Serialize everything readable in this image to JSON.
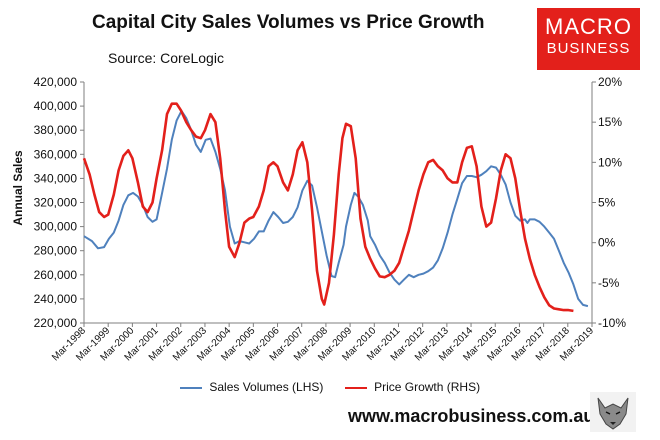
{
  "title": "Capital City Sales Volumes vs Price Growth",
  "source": "Source: CoreLogic",
  "logo": {
    "line1": "MACRO",
    "line2": "BUSINESS"
  },
  "website": "www.macrobusiness.com.au",
  "colors": {
    "sales": "#4f81bd",
    "price": "#e3201b",
    "logo_bg": "#e3201b"
  },
  "chart_data": {
    "type": "line",
    "title": "Capital City Sales Volumes vs Price Growth",
    "ylabel": "Annual Sales",
    "y2label": "",
    "grid": false,
    "legend_position": "bottom",
    "x_range": [
      1998.17,
      2019.17
    ],
    "x_ticks": [
      {
        "x": 1998.17,
        "label": "Mar-1998"
      },
      {
        "x": 1999.17,
        "label": "Mar-1999"
      },
      {
        "x": 2000.17,
        "label": "Mar-2000"
      },
      {
        "x": 2001.17,
        "label": "Mar-2001"
      },
      {
        "x": 2002.17,
        "label": "Mar-2002"
      },
      {
        "x": 2003.17,
        "label": "Mar-2003"
      },
      {
        "x": 2004.17,
        "label": "Mar-2004"
      },
      {
        "x": 2005.17,
        "label": "Mar-2005"
      },
      {
        "x": 2006.17,
        "label": "Mar-2006"
      },
      {
        "x": 2007.17,
        "label": "Mar-2007"
      },
      {
        "x": 2008.17,
        "label": "Mar-2008"
      },
      {
        "x": 2009.17,
        "label": "Mar-2009"
      },
      {
        "x": 2010.17,
        "label": "Mar-2010"
      },
      {
        "x": 2011.17,
        "label": "Mar-2011"
      },
      {
        "x": 2012.17,
        "label": "Mar-2012"
      },
      {
        "x": 2013.17,
        "label": "Mar-2013"
      },
      {
        "x": 2014.17,
        "label": "Mar-2014"
      },
      {
        "x": 2015.17,
        "label": "Mar-2015"
      },
      {
        "x": 2016.17,
        "label": "Mar-2016"
      },
      {
        "x": 2017.17,
        "label": "Mar-2017"
      },
      {
        "x": 2018.17,
        "label": "Mar-2018"
      },
      {
        "x": 2019.17,
        "label": "Mar-2019"
      }
    ],
    "y_left": {
      "range": [
        220000,
        420000
      ],
      "ticks": [
        {
          "v": 220000,
          "label": "220,000"
        },
        {
          "v": 240000,
          "label": "240,000"
        },
        {
          "v": 260000,
          "label": "260,000"
        },
        {
          "v": 280000,
          "label": "280,000"
        },
        {
          "v": 300000,
          "label": "300,000"
        },
        {
          "v": 320000,
          "label": "320,000"
        },
        {
          "v": 340000,
          "label": "340,000"
        },
        {
          "v": 360000,
          "label": "360,000"
        },
        {
          "v": 380000,
          "label": "380,000"
        },
        {
          "v": 400000,
          "label": "400,000"
        },
        {
          "v": 420000,
          "label": "420,000"
        }
      ]
    },
    "y_right": {
      "range": [
        -10,
        20
      ],
      "ticks": [
        {
          "v": -10,
          "label": "-10%"
        },
        {
          "v": -5,
          "label": "-5%"
        },
        {
          "v": 0,
          "label": "0%"
        },
        {
          "v": 5,
          "label": "5%"
        },
        {
          "v": 10,
          "label": "10%"
        },
        {
          "v": 15,
          "label": "15%"
        },
        {
          "v": 20,
          "label": "20%"
        }
      ]
    },
    "series": [
      {
        "name": "Sales Volumes (LHS)",
        "axis": "left",
        "points": [
          [
            1998.17,
            292000
          ],
          [
            1998.5,
            288000
          ],
          [
            1998.75,
            282000
          ],
          [
            1999.0,
            283000
          ],
          [
            1999.2,
            290000
          ],
          [
            1999.4,
            295000
          ],
          [
            1999.6,
            305000
          ],
          [
            1999.8,
            318000
          ],
          [
            2000.0,
            326000
          ],
          [
            2000.2,
            328000
          ],
          [
            2000.4,
            325000
          ],
          [
            2000.6,
            318000
          ],
          [
            2000.8,
            308000
          ],
          [
            2001.0,
            304000
          ],
          [
            2001.17,
            306000
          ],
          [
            2001.4,
            328000
          ],
          [
            2001.6,
            348000
          ],
          [
            2001.8,
            372000
          ],
          [
            2002.0,
            388000
          ],
          [
            2002.2,
            396000
          ],
          [
            2002.4,
            390000
          ],
          [
            2002.6,
            380000
          ],
          [
            2002.8,
            368000
          ],
          [
            2003.0,
            362000
          ],
          [
            2003.2,
            372000
          ],
          [
            2003.4,
            373000
          ],
          [
            2003.6,
            362000
          ],
          [
            2003.8,
            348000
          ],
          [
            2004.0,
            330000
          ],
          [
            2004.2,
            300000
          ],
          [
            2004.4,
            286000
          ],
          [
            2004.6,
            288000
          ],
          [
            2004.8,
            287000
          ],
          [
            2005.0,
            286000
          ],
          [
            2005.2,
            290000
          ],
          [
            2005.4,
            296000
          ],
          [
            2005.6,
            296000
          ],
          [
            2005.8,
            305000
          ],
          [
            2006.0,
            312000
          ],
          [
            2006.2,
            308000
          ],
          [
            2006.4,
            303000
          ],
          [
            2006.6,
            304000
          ],
          [
            2006.8,
            308000
          ],
          [
            2007.0,
            316000
          ],
          [
            2007.2,
            330000
          ],
          [
            2007.4,
            338000
          ],
          [
            2007.6,
            334000
          ],
          [
            2007.8,
            316000
          ],
          [
            2008.0,
            296000
          ],
          [
            2008.2,
            276000
          ],
          [
            2008.4,
            259000
          ],
          [
            2008.55,
            258000
          ],
          [
            2008.7,
            270000
          ],
          [
            2008.9,
            285000
          ],
          [
            2009.0,
            300000
          ],
          [
            2009.2,
            318000
          ],
          [
            2009.35,
            328000
          ],
          [
            2009.5,
            325000
          ],
          [
            2009.7,
            318000
          ],
          [
            2009.9,
            305000
          ],
          [
            2010.0,
            292000
          ],
          [
            2010.2,
            285000
          ],
          [
            2010.4,
            276000
          ],
          [
            2010.6,
            270000
          ],
          [
            2010.8,
            262000
          ],
          [
            2011.0,
            256000
          ],
          [
            2011.2,
            252000
          ],
          [
            2011.4,
            256000
          ],
          [
            2011.6,
            260000
          ],
          [
            2011.8,
            258000
          ],
          [
            2012.0,
            260000
          ],
          [
            2012.2,
            261000
          ],
          [
            2012.4,
            263000
          ],
          [
            2012.6,
            266000
          ],
          [
            2012.8,
            272000
          ],
          [
            2013.0,
            282000
          ],
          [
            2013.2,
            295000
          ],
          [
            2013.4,
            310000
          ],
          [
            2013.6,
            323000
          ],
          [
            2013.8,
            336000
          ],
          [
            2014.0,
            342000
          ],
          [
            2014.2,
            342000
          ],
          [
            2014.4,
            341000
          ],
          [
            2014.6,
            343000
          ],
          [
            2014.8,
            346000
          ],
          [
            2015.0,
            350000
          ],
          [
            2015.2,
            349000
          ],
          [
            2015.4,
            343000
          ],
          [
            2015.6,
            335000
          ],
          [
            2015.8,
            320000
          ],
          [
            2016.0,
            309000
          ],
          [
            2016.2,
            305000
          ],
          [
            2016.4,
            306000
          ],
          [
            2016.5,
            303000
          ],
          [
            2016.6,
            306000
          ],
          [
            2016.8,
            306000
          ],
          [
            2017.0,
            304000
          ],
          [
            2017.2,
            300000
          ],
          [
            2017.4,
            295000
          ],
          [
            2017.6,
            290000
          ],
          [
            2017.8,
            280000
          ],
          [
            2018.0,
            270000
          ],
          [
            2018.2,
            262000
          ],
          [
            2018.4,
            252000
          ],
          [
            2018.6,
            240000
          ],
          [
            2018.8,
            235000
          ],
          [
            2019.0,
            234000
          ]
        ]
      },
      {
        "name": "Price Growth (RHS)",
        "axis": "right",
        "points": [
          [
            1998.17,
            10.5
          ],
          [
            1998.4,
            8.5
          ],
          [
            1998.6,
            6.0
          ],
          [
            1998.8,
            3.8
          ],
          [
            1999.0,
            3.2
          ],
          [
            1999.17,
            3.5
          ],
          [
            1999.4,
            6.0
          ],
          [
            1999.6,
            9.0
          ],
          [
            1999.8,
            10.8
          ],
          [
            2000.0,
            11.5
          ],
          [
            2000.17,
            10.5
          ],
          [
            2000.4,
            7.5
          ],
          [
            2000.6,
            4.5
          ],
          [
            2000.8,
            3.8
          ],
          [
            2001.0,
            5.0
          ],
          [
            2001.17,
            8.0
          ],
          [
            2001.4,
            11.5
          ],
          [
            2001.6,
            16.0
          ],
          [
            2001.8,
            17.3
          ],
          [
            2002.0,
            17.3
          ],
          [
            2002.17,
            16.5
          ],
          [
            2002.4,
            15.0
          ],
          [
            2002.6,
            14.0
          ],
          [
            2002.8,
            13.2
          ],
          [
            2003.0,
            13.0
          ],
          [
            2003.17,
            14.0
          ],
          [
            2003.4,
            16.0
          ],
          [
            2003.6,
            15.0
          ],
          [
            2003.8,
            10.5
          ],
          [
            2004.0,
            4.0
          ],
          [
            2004.17,
            -0.5
          ],
          [
            2004.4,
            -1.8
          ],
          [
            2004.6,
            0.0
          ],
          [
            2004.8,
            2.5
          ],
          [
            2005.0,
            3.0
          ],
          [
            2005.17,
            3.2
          ],
          [
            2005.4,
            4.5
          ],
          [
            2005.6,
            6.5
          ],
          [
            2005.8,
            9.5
          ],
          [
            2006.0,
            10.0
          ],
          [
            2006.17,
            9.5
          ],
          [
            2006.4,
            7.5
          ],
          [
            2006.6,
            6.5
          ],
          [
            2006.8,
            8.5
          ],
          [
            2007.0,
            11.5
          ],
          [
            2007.2,
            12.5
          ],
          [
            2007.4,
            10.0
          ],
          [
            2007.6,
            4.0
          ],
          [
            2007.8,
            -3.5
          ],
          [
            2008.0,
            -7.0
          ],
          [
            2008.1,
            -7.7
          ],
          [
            2008.3,
            -5.0
          ],
          [
            2008.5,
            1.0
          ],
          [
            2008.7,
            8.5
          ],
          [
            2008.85,
            13.0
          ],
          [
            2009.0,
            14.8
          ],
          [
            2009.2,
            14.5
          ],
          [
            2009.4,
            10.5
          ],
          [
            2009.6,
            3.0
          ],
          [
            2009.8,
            -0.5
          ],
          [
            2010.0,
            -2.0
          ],
          [
            2010.2,
            -3.2
          ],
          [
            2010.4,
            -4.2
          ],
          [
            2010.6,
            -4.3
          ],
          [
            2010.8,
            -4.0
          ],
          [
            2011.0,
            -3.5
          ],
          [
            2011.2,
            -2.5
          ],
          [
            2011.4,
            -0.5
          ],
          [
            2011.6,
            1.5
          ],
          [
            2011.8,
            4.0
          ],
          [
            2012.0,
            6.5
          ],
          [
            2012.2,
            8.5
          ],
          [
            2012.4,
            10.0
          ],
          [
            2012.6,
            10.3
          ],
          [
            2012.8,
            9.5
          ],
          [
            2013.0,
            9.0
          ],
          [
            2013.2,
            8.0
          ],
          [
            2013.4,
            7.5
          ],
          [
            2013.6,
            7.5
          ],
          [
            2013.8,
            10.0
          ],
          [
            2014.0,
            11.8
          ],
          [
            2014.2,
            12.0
          ],
          [
            2014.4,
            9.5
          ],
          [
            2014.6,
            4.5
          ],
          [
            2014.8,
            2.0
          ],
          [
            2015.0,
            2.5
          ],
          [
            2015.2,
            5.5
          ],
          [
            2015.4,
            9.0
          ],
          [
            2015.6,
            11.0
          ],
          [
            2015.8,
            10.5
          ],
          [
            2016.0,
            8.0
          ],
          [
            2016.2,
            4.0
          ],
          [
            2016.4,
            0.5
          ],
          [
            2016.6,
            -2.0
          ],
          [
            2016.8,
            -4.0
          ],
          [
            2017.0,
            -5.5
          ],
          [
            2017.2,
            -6.8
          ],
          [
            2017.4,
            -7.8
          ],
          [
            2017.6,
            -8.2
          ],
          [
            2017.8,
            -8.3
          ],
          [
            2018.0,
            -8.4
          ],
          [
            2018.2,
            -8.4
          ],
          [
            2018.4,
            -8.5
          ]
        ]
      }
    ]
  }
}
